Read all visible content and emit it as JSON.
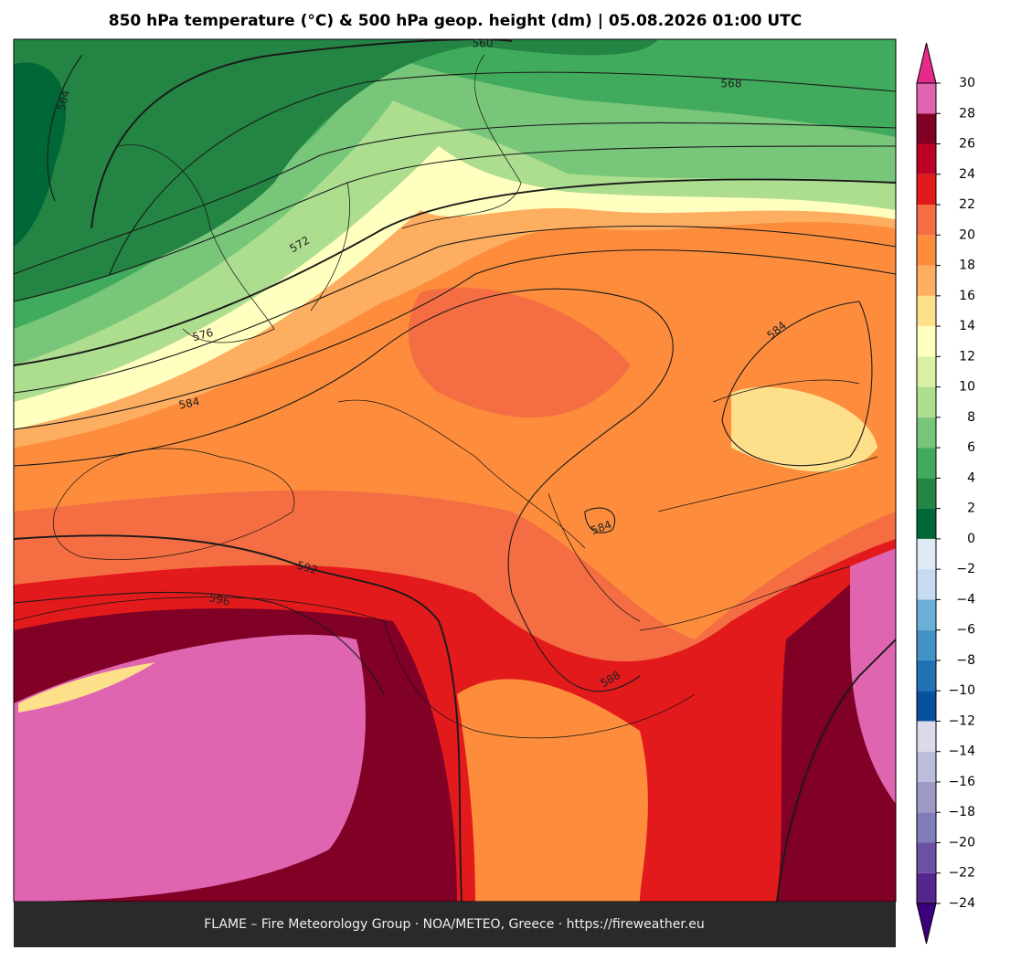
{
  "title": "850 hPa temperature (°C) & 500 hPa geop. height (dm)  |  05.08.2026 01:00 UTC",
  "footer": "FLAME – Fire Meteorology Group · NOA/METEO, Greece · https://fireweather.eu",
  "contour_labels": [
    560,
    564,
    568,
    572,
    576,
    584,
    584,
    584,
    588,
    592,
    596
  ],
  "colorbar": {
    "ylim": [
      -24,
      30
    ],
    "ticks": [
      {
        "value": -24,
        "label": "−24"
      },
      {
        "value": -22,
        "label": "−22"
      },
      {
        "value": -20,
        "label": "−20"
      },
      {
        "value": -18,
        "label": "−18"
      },
      {
        "value": -16,
        "label": "−16"
      },
      {
        "value": -14,
        "label": "−14"
      },
      {
        "value": -12,
        "label": "−12"
      },
      {
        "value": -10,
        "label": "−10"
      },
      {
        "value": -8,
        "label": "−8"
      },
      {
        "value": -6,
        "label": "−6"
      },
      {
        "value": -4,
        "label": "−4"
      },
      {
        "value": -2,
        "label": "−2"
      },
      0,
      2,
      4,
      6,
      8,
      10,
      12,
      14,
      16,
      18,
      20,
      22,
      24,
      26,
      28,
      30
    ],
    "colors": [
      "#54278f",
      "#6a51a3",
      "#807dba",
      "#9e9ac8",
      "#bcbddc",
      "#dadaeb",
      "#08519c",
      "#2171b5",
      "#4292c6",
      "#6baed6",
      "#c6dbef",
      "#deebf7",
      "#006837",
      "#238443",
      "#41ab5d",
      "#78c679",
      "#addd8e",
      "#d9f0a3",
      "#ffffbf",
      "#fee08b",
      "#fdae61",
      "#fd8d3c",
      "#f46d43",
      "#e31a1c",
      "#bd0026",
      "#800026",
      "#df65b0"
    ],
    "under_color": "#3f007d",
    "over_color": "#e7298a"
  }
}
